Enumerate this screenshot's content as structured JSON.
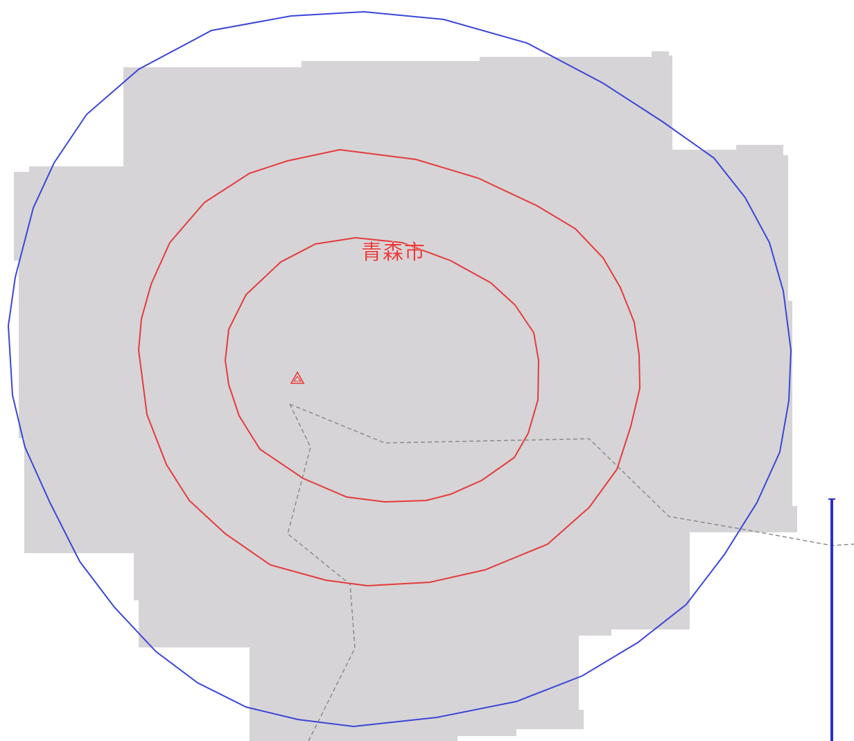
{
  "map": {
    "place_label": "青森市",
    "colors": {
      "background": "#ffffff",
      "land_mass": "#d6d4d7",
      "inner_rings": "#e53a3a",
      "outer_ring": "#3a45d6",
      "boundary_lines": "#8a8a8a",
      "scale_bar": "#2a2fd0"
    },
    "icons": {
      "station_marker": "triangle-icon"
    }
  }
}
